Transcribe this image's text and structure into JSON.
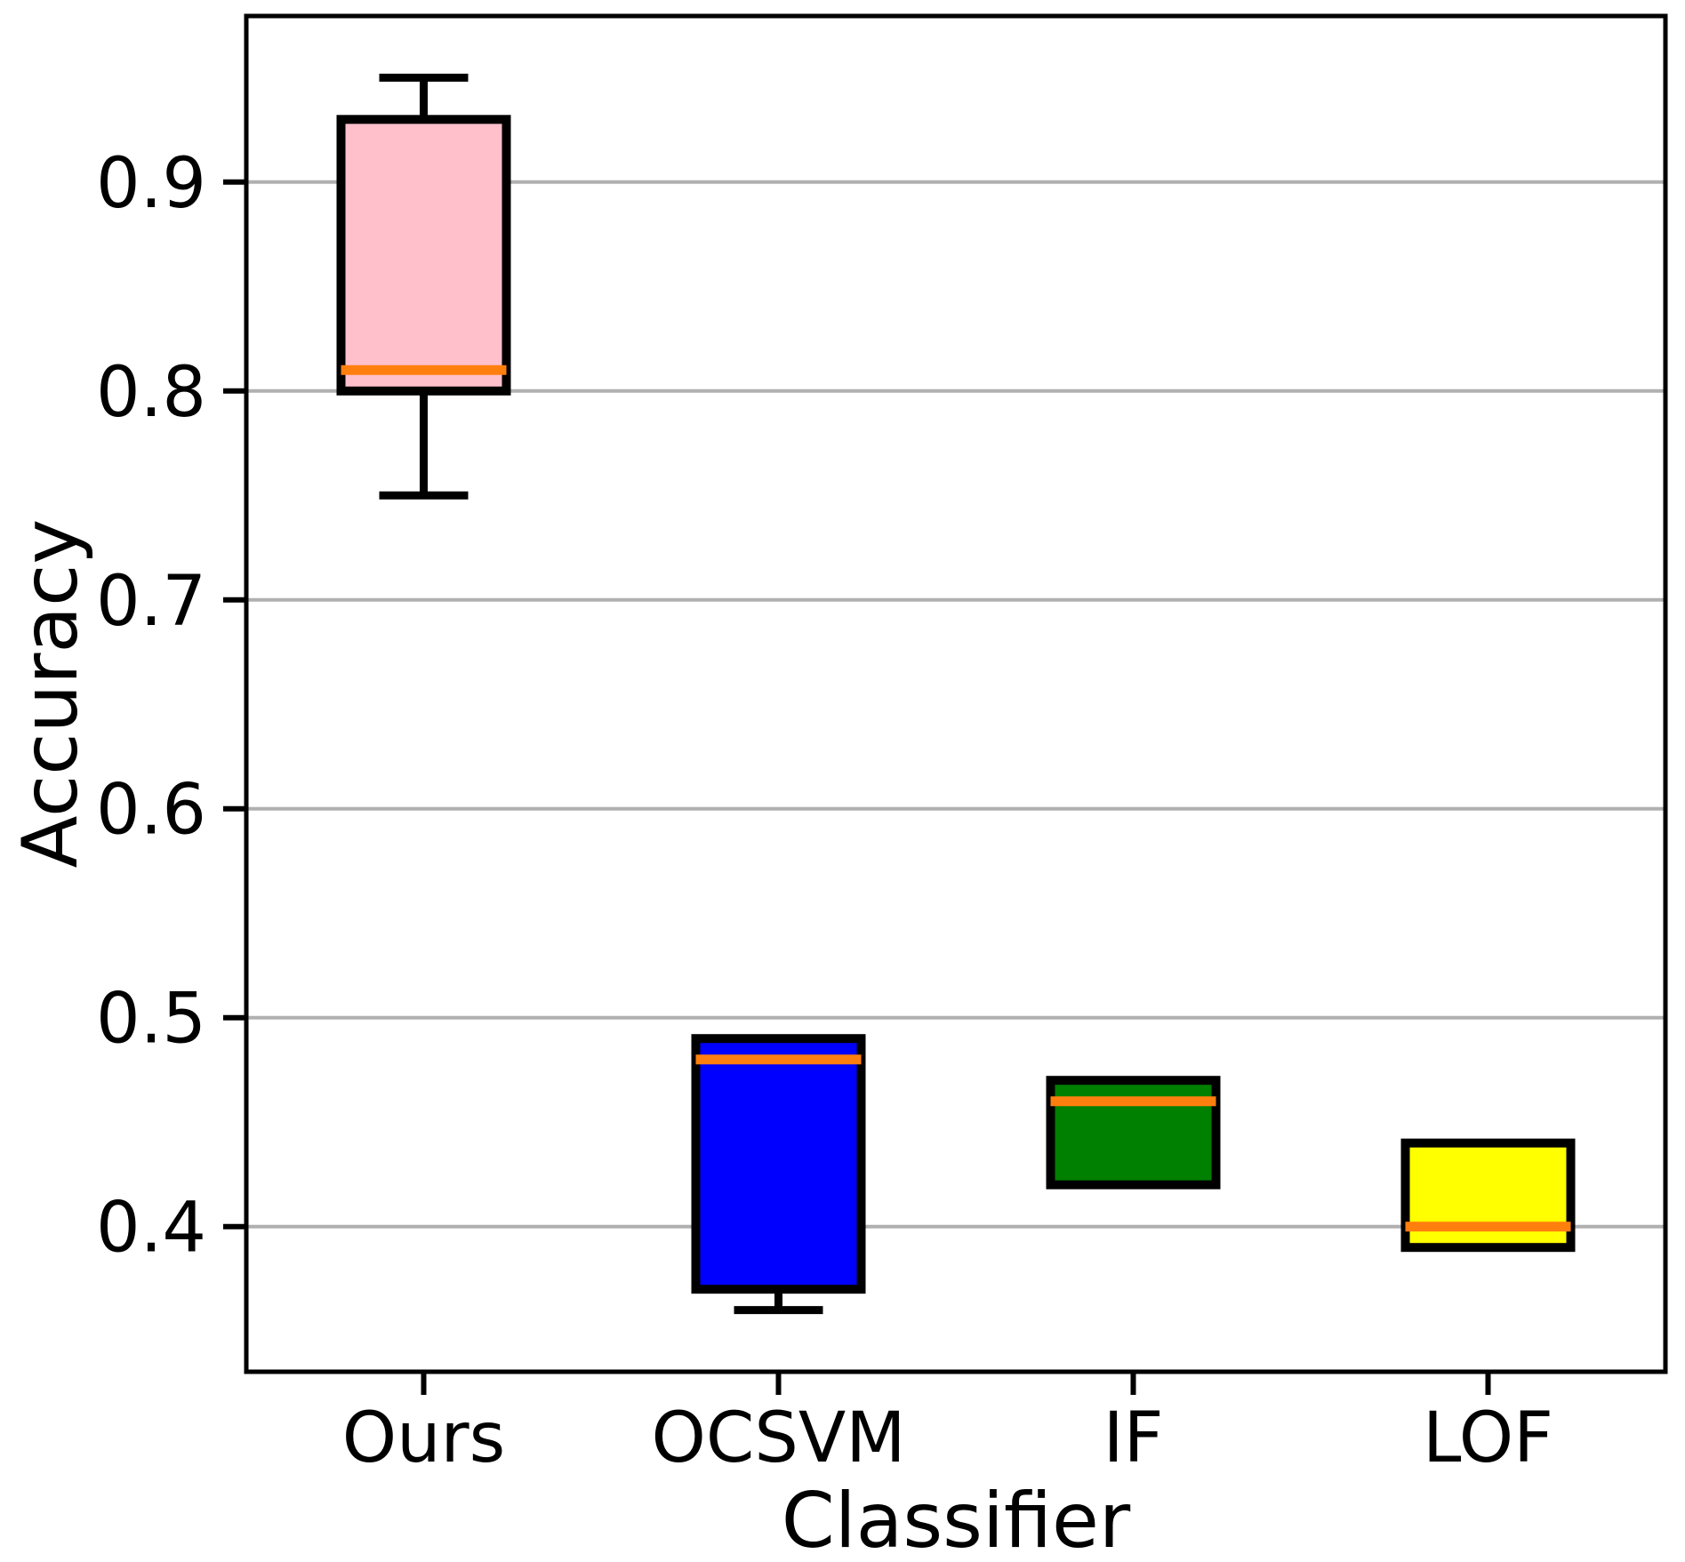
{
  "chart_data": {
    "type": "box",
    "title": "",
    "xlabel": "Classifier",
    "ylabel": "Accuracy",
    "categories": [
      "Ours",
      "OCSVM",
      "IF",
      "LOF"
    ],
    "ylim": [
      0.3305,
      0.9795
    ],
    "yticks": [
      0.4,
      0.5,
      0.6,
      0.7,
      0.8,
      0.9
    ],
    "ytick_labels": [
      "0.4",
      "0.5",
      "0.6",
      "0.7",
      "0.8",
      "0.9"
    ],
    "grid": "horizontal-gridlines-on",
    "legend": "none",
    "series": [
      {
        "label": "Ours",
        "whisker_low": 0.75,
        "q1": 0.8,
        "median": 0.81,
        "q3": 0.93,
        "whisker_high": 0.95,
        "fill": "#ffc0cb"
      },
      {
        "label": "OCSVM",
        "whisker_low": 0.36,
        "q1": 0.37,
        "median": 0.48,
        "q3": 0.49,
        "whisker_high": 0.49,
        "fill": "#0000ff"
      },
      {
        "label": "IF",
        "whisker_low": 0.42,
        "q1": 0.42,
        "median": 0.46,
        "q3": 0.47,
        "whisker_high": 0.47,
        "fill": "#008000"
      },
      {
        "label": "LOF",
        "whisker_low": 0.39,
        "q1": 0.39,
        "median": 0.4,
        "q3": 0.44,
        "whisker_high": 0.44,
        "fill": "#ffff00"
      }
    ],
    "colors": {
      "median_line": "#ff7f0e",
      "box_edge": "#000000",
      "whisker": "#000000",
      "grid_line": "#b0b0b0",
      "spine": "#000000",
      "background": "#ffffff"
    }
  }
}
